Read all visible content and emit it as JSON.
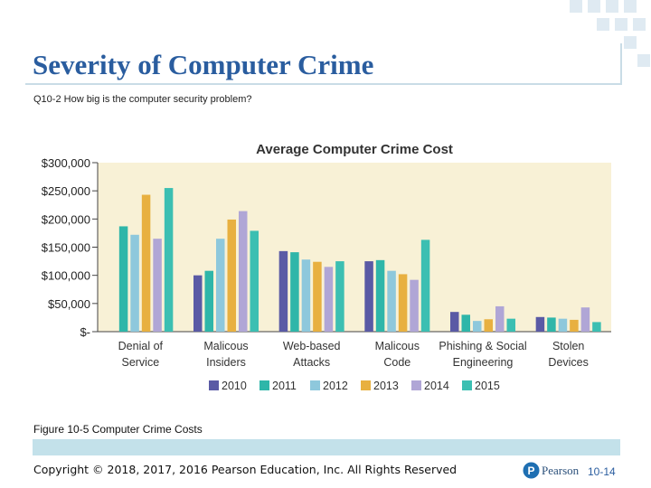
{
  "slide": {
    "title": "Severity of Computer Crime",
    "subtitle": "Q10-2 How big is the computer security problem?",
    "caption": "Figure 10-5 Computer Crime Costs",
    "copyright": "Copyright © 2018, 2017, 2016 Pearson Education, Inc. All Rights Reserved",
    "logo_text": "Pearson",
    "slide_number": "10-14"
  },
  "colors": {
    "title": "#2a5d9f",
    "plot_bg": "#f8f1d6",
    "series": [
      "#5a5aa5",
      "#2fb6a9",
      "#8ec8dc",
      "#e8b040",
      "#b0a6d6",
      "#3cbfb2"
    ]
  },
  "chart_data": {
    "type": "bar",
    "title": "Average Computer Crime Cost",
    "xlabel": "",
    "ylabel": "",
    "ylim": [
      0,
      300000
    ],
    "y_ticks": [
      0,
      50000,
      100000,
      150000,
      200000,
      250000,
      300000
    ],
    "y_tick_labels": [
      "$-",
      "$50,000",
      "$100,000",
      "$150,000",
      "$200,000",
      "$250,000",
      "$300,000"
    ],
    "categories": [
      [
        "Denial of",
        "Service"
      ],
      [
        "Malicous",
        "Insiders"
      ],
      [
        "Web-based",
        "Attacks"
      ],
      [
        "Malicous",
        "Code"
      ],
      [
        "Phishing & Social",
        "Engineering"
      ],
      [
        "Stolen",
        "Devices"
      ]
    ],
    "series": [
      {
        "name": "2010",
        "values": [
          0,
          100000,
          143000,
          125000,
          35000,
          26000
        ]
      },
      {
        "name": "2011",
        "values": [
          187000,
          108000,
          141000,
          127000,
          30000,
          25000
        ]
      },
      {
        "name": "2012",
        "values": [
          172000,
          165000,
          128000,
          108000,
          19000,
          23000
        ]
      },
      {
        "name": "2013",
        "values": [
          243000,
          199000,
          124000,
          102000,
          22000,
          21000
        ]
      },
      {
        "name": "2014",
        "values": [
          165000,
          214000,
          115000,
          92000,
          45000,
          43000
        ]
      },
      {
        "name": "2015",
        "values": [
          255000,
          179000,
          125000,
          163000,
          23000,
          17000
        ]
      }
    ],
    "legend_position": "bottom"
  }
}
